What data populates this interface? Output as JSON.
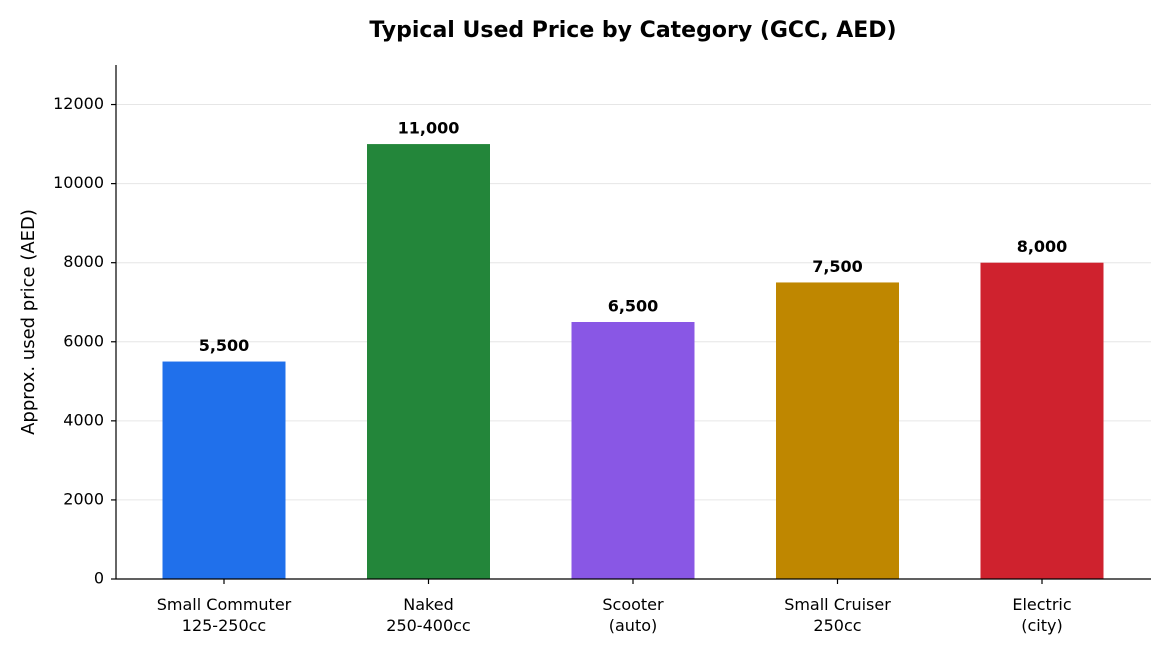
{
  "chart_data": {
    "type": "bar",
    "title": "Typical Used Price by Category (GCC, AED)",
    "y_label": "Approx. used price (AED)",
    "categories": [
      "Small Commuter\n125-250cc",
      "Naked\n250-400cc",
      "Scooter\n(auto)",
      "Small Cruiser\n250cc",
      "Electric\n(city)"
    ],
    "values": [
      5500,
      11000,
      6500,
      7500,
      8000
    ],
    "value_labels": [
      "5,500",
      "11,000",
      "6,500",
      "7,500",
      "8,000"
    ],
    "colors": [
      "#2070eb",
      "#23863a",
      "#8957e5",
      "#bf8700",
      "#cf222e"
    ],
    "ylim": [
      0,
      13000
    ],
    "yticks": [
      0,
      2000,
      4000,
      6000,
      8000,
      10000,
      12000
    ],
    "grid": true
  }
}
